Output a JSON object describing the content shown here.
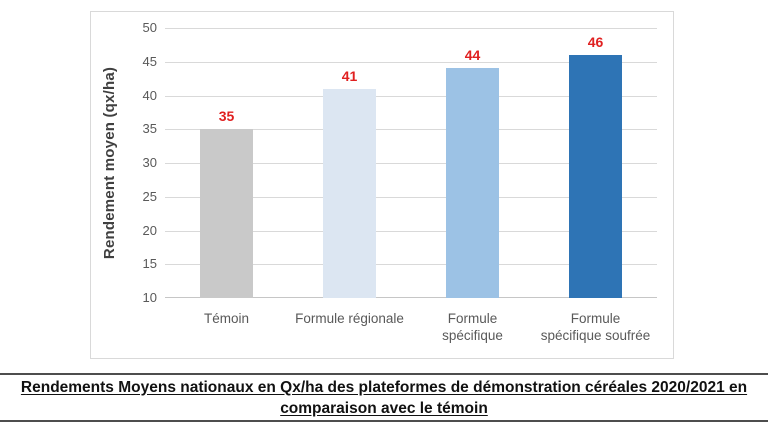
{
  "page": {
    "background": "#ffffff"
  },
  "chart_data": {
    "type": "bar",
    "title": "",
    "categories": [
      "Témoin",
      "Formule régionale",
      "Formule\nspécifique",
      "Formule\nspécifique soufrée"
    ],
    "values": [
      35,
      41,
      44,
      46
    ],
    "bar_colors": [
      "#c9c9c9",
      "#dce6f2",
      "#9cc2e5",
      "#2e74b5"
    ],
    "value_labels": [
      "35",
      "41",
      "44",
      "46"
    ],
    "value_label_color": "#e02020",
    "xlabel": "",
    "ylabel": "Rendement moyen (qx/ha)",
    "ylim": [
      10,
      50
    ],
    "ytick_step": 5,
    "yticks": [
      "10",
      "15",
      "20",
      "25",
      "30",
      "35",
      "40",
      "45",
      "50"
    ],
    "grid": true,
    "gridline_color": "#d9d9d9",
    "baseline_color": "#c6c6c6",
    "tick_label_color": "#595959",
    "category_label_color": "#595959",
    "axis_title_color": "#404040",
    "chart_border_color": "#d9d9d9",
    "legend": null
  },
  "caption": {
    "text": "Rendements Moyens nationaux en Qx/ha des plateformes de démonstration céréales 2020/2021 en comparaison avec le témoin",
    "rule_color": "#4d4d4d"
  }
}
